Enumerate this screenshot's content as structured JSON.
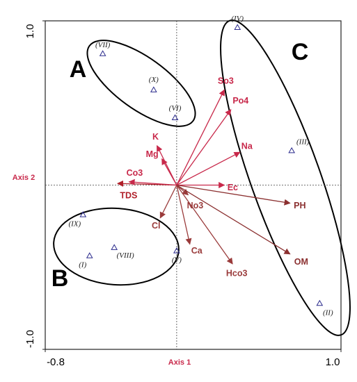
{
  "chart_data": {
    "type": "biplot",
    "xlabel": "Axis 1",
    "ylabel": "Axis 2",
    "xlim": [
      -0.8,
      1.0
    ],
    "ylim": [
      -1.0,
      1.0
    ],
    "xticks": [
      -0.8,
      {
        "value": 1.0,
        "label": "1.0"
      }
    ],
    "yticks": [
      {
        "value": 1.0,
        "label": "1.0"
      },
      {
        "value": -1.0,
        "label": "-1.0"
      }
    ],
    "points": {
      "color": "#2a2a8c",
      "labels": [
        "(VII)",
        "(X)",
        "(VI)",
        "(IV)",
        "(III)",
        "(II)",
        "(IX)",
        "(I)",
        "(VIII)",
        "(V)"
      ],
      "x": [
        -0.45,
        -0.14,
        -0.01,
        0.37,
        0.7,
        0.87,
        -0.57,
        -0.53,
        -0.38,
        0.0
      ],
      "y": [
        0.8,
        0.58,
        0.41,
        0.96,
        0.21,
        -0.72,
        -0.18,
        -0.43,
        -0.38,
        -0.4
      ]
    },
    "vectors": {
      "labels": [
        "So3",
        "Po4",
        "Na",
        "Ec",
        "No3",
        "PH",
        "OM",
        "Hco3",
        "Ca",
        "Cl",
        "TDS",
        "Co3",
        "Mg",
        "K"
      ],
      "x": [
        0.29,
        0.33,
        0.385,
        0.29,
        0.07,
        0.69,
        0.69,
        0.34,
        0.08,
        -0.1,
        -0.36,
        -0.29,
        -0.09,
        -0.12
      ],
      "y": [
        0.58,
        0.46,
        0.2,
        0.0,
        -0.06,
        -0.11,
        -0.42,
        -0.48,
        -0.36,
        -0.2,
        0.01,
        0.02,
        0.16,
        0.24
      ],
      "colors": [
        "#c8284a",
        "#c8284a",
        "#c8284a",
        "#c8284a",
        "#9a3b3b",
        "#8b3030",
        "#8b3030",
        "#9a3b3b",
        "#9a3b3b",
        "#9a3b3b",
        "#b0202a",
        "#c8284a",
        "#c8284a",
        "#c8284a"
      ]
    },
    "annotations": [
      "A",
      "B",
      "C"
    ]
  }
}
